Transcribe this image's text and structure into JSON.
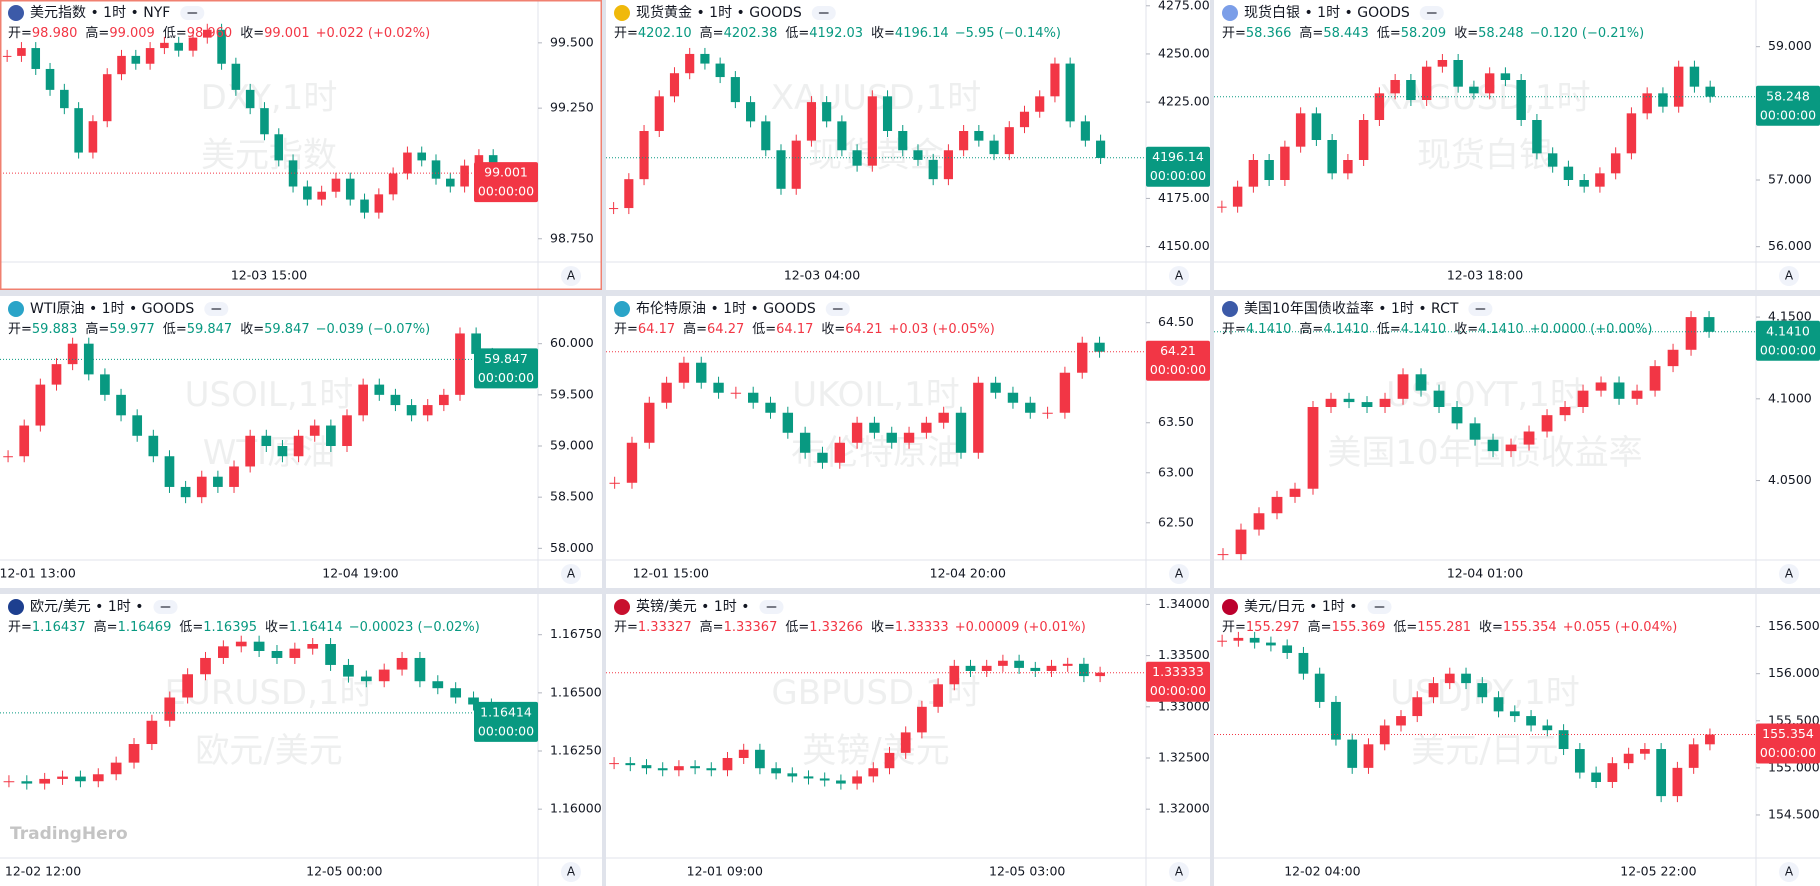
{
  "logo": "TradingHero",
  "panels": [
    {
      "type": "candlestick",
      "title": "美元指数 • 1时 • NYF",
      "color": "#f23645",
      "ohlc": [
        {
          "label": "开=",
          "value": "98.980"
        },
        {
          "label": "高=",
          "value": "99.009"
        },
        {
          "label": "低=",
          "value": "98.960"
        },
        {
          "label": "收=",
          "value": "99.001"
        }
      ],
      "change": "+0.022 (+0.02%)",
      "watermark": [
        "DXY,1时",
        "美元指数"
      ],
      "last": {
        "value": 99.001,
        "label": "99.001"
      },
      "countdown": "00:00:00",
      "time_labels": [
        "12-03 15:00"
      ],
      "auto": "A",
      "ylim": [
        98.661,
        99.664
      ],
      "yticks": [
        {
          "value": 99.5,
          "label": "99.500"
        },
        {
          "value": 99.25,
          "label": "99.250"
        },
        {
          "value": 98.75,
          "label": "98.750"
        }
      ],
      "closes": [
        99.45,
        99.48,
        99.4,
        99.32,
        99.25,
        99.08,
        99.2,
        99.38,
        99.45,
        99.42,
        99.48,
        99.5,
        99.47,
        99.52,
        99.55,
        99.42,
        99.32,
        99.25,
        99.15,
        99.05,
        98.95,
        98.9,
        98.93,
        98.98,
        98.9,
        98.85,
        98.92,
        99.0,
        99.08,
        99.05,
        98.98,
        98.95,
        99.03,
        99.07,
        99.01
      ]
    },
    {
      "type": "candlestick",
      "title": "现货黄金 • 1时 • GOODS",
      "color": "#089981",
      "ohlc": [
        {
          "label": "开=",
          "value": "4202.10"
        },
        {
          "label": "高=",
          "value": "4202.38"
        },
        {
          "label": "低=",
          "value": "4192.03"
        },
        {
          "label": "收=",
          "value": "4196.14"
        }
      ],
      "change": "−5.95 (−0.14%)",
      "watermark": [
        "XAUUSD,1时",
        "现货黄金"
      ],
      "last": {
        "value": 4196.14,
        "label": "4196.14"
      },
      "countdown": "00:00:00",
      "time_labels": [
        "12-03 04:00"
      ],
      "auto": "A",
      "ylim": [
        4142,
        4278
      ],
      "yticks": [
        {
          "value": 4275,
          "label": "4275.00"
        },
        {
          "value": 4250,
          "label": "4250.00"
        },
        {
          "value": 4225,
          "label": "4225.00"
        },
        {
          "value": 4175,
          "label": "4175.00"
        },
        {
          "value": 4150,
          "label": "4150.00"
        }
      ],
      "closes": [
        4170,
        4185,
        4210,
        4228,
        4240,
        4250,
        4245,
        4238,
        4225,
        4215,
        4200,
        4180,
        4205,
        4225,
        4215,
        4200,
        4192,
        4228,
        4210,
        4200,
        4195,
        4185,
        4200,
        4210,
        4205,
        4198,
        4212,
        4220,
        4228,
        4245,
        4215,
        4205,
        4196
      ]
    },
    {
      "type": "candlestick",
      "title": "现货白银 • 1时 • GOODS",
      "color": "#089981",
      "ohlc": [
        {
          "label": "开=",
          "value": "58.366"
        },
        {
          "label": "高=",
          "value": "58.443"
        },
        {
          "label": "低=",
          "value": "58.209"
        },
        {
          "label": "收=",
          "value": "58.248"
        }
      ],
      "change": "−0.120 (−0.21%)",
      "watermark": [
        "XAGUSD,1时",
        "现货白银"
      ],
      "last": {
        "value": 58.248,
        "label": "58.248"
      },
      "countdown": "00:00:00",
      "time_labels": [
        "12-03 18:00"
      ],
      "auto": "A",
      "ylim": [
        55.77,
        59.7
      ],
      "yticks": [
        {
          "value": 59,
          "label": "59.000"
        },
        {
          "value": 57,
          "label": "57.000"
        },
        {
          "value": 56,
          "label": "56.000"
        }
      ],
      "closes": [
        56.6,
        56.9,
        57.3,
        57.0,
        57.5,
        58.0,
        57.6,
        57.1,
        57.3,
        57.9,
        58.3,
        58.5,
        58.2,
        58.7,
        58.8,
        58.4,
        58.3,
        58.6,
        58.5,
        57.9,
        57.4,
        57.2,
        57.0,
        56.9,
        57.1,
        57.4,
        58.0,
        58.3,
        58.1,
        58.7,
        58.4,
        58.25
      ]
    },
    {
      "type": "candlestick",
      "title": "WTI原油 • 1时 • GOODS",
      "color": "#089981",
      "ohlc": [
        {
          "label": "开=",
          "value": "59.883"
        },
        {
          "label": "高=",
          "value": "59.977"
        },
        {
          "label": "低=",
          "value": "59.847"
        },
        {
          "label": "收=",
          "value": "59.847"
        }
      ],
      "change": "−0.039 (−0.07%)",
      "watermark": [
        "USOIL,1时",
        "WTI原油"
      ],
      "last": {
        "value": 59.847,
        "label": "59.847"
      },
      "countdown": "00:00:00",
      "time_labels": [
        "12-01 13:00",
        "12-04 19:00"
      ],
      "auto": "A",
      "ylim": [
        57.886,
        60.466
      ],
      "yticks": [
        {
          "value": 60,
          "label": "60.000"
        },
        {
          "value": 59.5,
          "label": "59.500"
        },
        {
          "value": 59,
          "label": "59.000"
        },
        {
          "value": 58.5,
          "label": "58.500"
        },
        {
          "value": 58,
          "label": "58.000"
        }
      ],
      "closes": [
        58.9,
        59.2,
        59.6,
        59.8,
        60.0,
        59.7,
        59.5,
        59.3,
        59.1,
        58.9,
        58.6,
        58.5,
        58.7,
        58.6,
        58.8,
        59.1,
        59.0,
        58.9,
        59.1,
        59.2,
        59.0,
        59.3,
        59.6,
        59.5,
        59.4,
        59.3,
        59.4,
        59.5,
        60.1,
        59.9,
        59.85
      ]
    },
    {
      "type": "candlestick",
      "title": "布伦特原油 • 1时 • GOODS",
      "color": "#f23645",
      "ohlc": [
        {
          "label": "开=",
          "value": "64.17"
        },
        {
          "label": "高=",
          "value": "64.27"
        },
        {
          "label": "低=",
          "value": "64.17"
        },
        {
          "label": "收=",
          "value": "64.21"
        }
      ],
      "change": "+0.03 (+0.05%)",
      "watermark": [
        "UKOIL,1时",
        "布伦特原油"
      ],
      "last": {
        "value": 64.21,
        "label": "64.21"
      },
      "countdown": "00:00:00",
      "time_labels": [
        "12-01 15:00",
        "12-04 20:00"
      ],
      "auto": "A",
      "ylim": [
        62.128,
        64.767
      ],
      "yticks": [
        {
          "value": 64.5,
          "label": "64.50"
        },
        {
          "value": 63.5,
          "label": "63.50"
        },
        {
          "value": 63,
          "label": "63.00"
        },
        {
          "value": 62.5,
          "label": "62.50"
        }
      ],
      "closes": [
        62.9,
        63.3,
        63.7,
        63.9,
        64.1,
        63.9,
        63.8,
        63.8,
        63.7,
        63.6,
        63.4,
        63.2,
        63.1,
        63.3,
        63.5,
        63.4,
        63.3,
        63.4,
        63.5,
        63.6,
        63.2,
        63.9,
        63.8,
        63.7,
        63.6,
        63.6,
        64.0,
        64.3,
        64.21
      ]
    },
    {
      "type": "candlestick",
      "title": "美国10年国债收益率 • 1时 • RCT",
      "color": "#089981",
      "ohlc": [
        {
          "label": "开=",
          "value": "4.1410"
        },
        {
          "label": "高=",
          "value": "4.1410"
        },
        {
          "label": "低=",
          "value": "4.1410"
        },
        {
          "label": "收=",
          "value": "4.1410"
        }
      ],
      "change": "+0.0000 (+0.00%)",
      "watermark": [
        "US10YT,1时",
        "美国10年国债收益率"
      ],
      "last": {
        "value": 4.141,
        "label": "4.1410"
      },
      "countdown": "00:00:00",
      "time_labels": [
        "12-04 01:00"
      ],
      "auto": "A",
      "ylim": [
        4.0014,
        4.1629
      ],
      "yticks": [
        {
          "value": 4.15,
          "label": "4.1500"
        },
        {
          "value": 4.1,
          "label": "4.1000"
        },
        {
          "value": 4.05,
          "label": "4.0500"
        }
      ],
      "closes": [
        4.005,
        4.02,
        4.03,
        4.04,
        4.045,
        4.095,
        4.1,
        4.098,
        4.095,
        4.1,
        4.115,
        4.105,
        4.095,
        4.085,
        4.075,
        4.068,
        4.072,
        4.08,
        4.09,
        4.095,
        4.105,
        4.11,
        4.1,
        4.105,
        4.12,
        4.13,
        4.15,
        4.141
      ]
    },
    {
      "type": "candlestick",
      "title": "欧元/美元 • 1时 •",
      "color": "#089981",
      "ohlc": [
        {
          "label": "开=",
          "value": "1.16437"
        },
        {
          "label": "高=",
          "value": "1.16469"
        },
        {
          "label": "低=",
          "value": "1.16395"
        },
        {
          "label": "收=",
          "value": "1.16414"
        }
      ],
      "change": "−0.00023 (−0.02%)",
      "watermark": [
        "EURUSD,1时",
        "欧元/美元"
      ],
      "last": {
        "value": 1.16414,
        "label": "1.16414"
      },
      "countdown": "00:00:00",
      "time_labels": [
        "12-02 12:00",
        "12-05 00:00"
      ],
      "auto": "A",
      "ylim": [
        1.1579,
        1.16925
      ],
      "yticks": [
        {
          "value": 1.1675,
          "label": "1.16750"
        },
        {
          "value": 1.165,
          "label": "1.16500"
        },
        {
          "value": 1.1625,
          "label": "1.16250"
        },
        {
          "value": 1.16,
          "label": "1.16000"
        }
      ],
      "closes": [
        1.1612,
        1.1611,
        1.1613,
        1.1614,
        1.1612,
        1.1615,
        1.162,
        1.1628,
        1.1638,
        1.1648,
        1.1658,
        1.1665,
        1.167,
        1.1672,
        1.1668,
        1.1665,
        1.1669,
        1.1671,
        1.1662,
        1.1657,
        1.1655,
        1.166,
        1.1665,
        1.1655,
        1.1652,
        1.1648,
        1.1645,
        1.16414
      ]
    },
    {
      "type": "candlestick",
      "title": "英镑/美元 • 1时 •",
      "color": "#f23645",
      "ohlc": [
        {
          "label": "开=",
          "value": "1.33327"
        },
        {
          "label": "高=",
          "value": "1.33367"
        },
        {
          "label": "低=",
          "value": "1.33266"
        },
        {
          "label": "收=",
          "value": "1.33333"
        }
      ],
      "change": "+0.00009 (+0.01%)",
      "watermark": [
        "GBPUSD,1时",
        "英镑/美元"
      ],
      "last": {
        "value": 1.33333,
        "label": "1.33333"
      },
      "countdown": "00:00:00",
      "time_labels": [
        "12-01 09:00",
        "12-05 03:00"
      ],
      "auto": "A",
      "ylim": [
        1.31523,
        1.34102
      ],
      "yticks": [
        {
          "value": 1.34,
          "label": "1.34000"
        },
        {
          "value": 1.335,
          "label": "1.33500"
        },
        {
          "value": 1.33,
          "label": "1.33000"
        },
        {
          "value": 1.325,
          "label": "1.32500"
        },
        {
          "value": 1.32,
          "label": "1.32000"
        }
      ],
      "closes": [
        1.3245,
        1.3243,
        1.324,
        1.3238,
        1.3242,
        1.324,
        1.3238,
        1.325,
        1.3258,
        1.324,
        1.3235,
        1.3232,
        1.323,
        1.3228,
        1.3225,
        1.3232,
        1.324,
        1.3255,
        1.3275,
        1.33,
        1.3322,
        1.334,
        1.3335,
        1.334,
        1.3345,
        1.3338,
        1.3335,
        1.334,
        1.3342,
        1.333,
        1.33333
      ]
    },
    {
      "type": "candlestick",
      "title": "美元/日元 • 1时 •",
      "color": "#f23645",
      "ohlc": [
        {
          "label": "开=",
          "value": "155.297"
        },
        {
          "label": "高=",
          "value": "155.369"
        },
        {
          "label": "低=",
          "value": "155.281"
        },
        {
          "label": "收=",
          "value": "155.354"
        }
      ],
      "change": "+0.055 (+0.04%)",
      "watermark": [
        "USDJPY,1时",
        "美元/日元"
      ],
      "last": {
        "value": 155.354,
        "label": "155.354"
      },
      "countdown": "00:00:00",
      "time_labels": [
        "12-02 04:00",
        "12-05 22:00"
      ],
      "auto": "A",
      "ylim": [
        154.043,
        156.846
      ],
      "yticks": [
        {
          "value": 156.5,
          "label": "156.500"
        },
        {
          "value": 156,
          "label": "156.000"
        },
        {
          "value": 155.5,
          "label": "155.500"
        },
        {
          "value": 155,
          "label": "155.000"
        },
        {
          "value": 154.5,
          "label": "154.500"
        }
      ],
      "closes": [
        156.35,
        156.38,
        156.33,
        156.3,
        156.22,
        156.0,
        155.7,
        155.3,
        155.0,
        155.25,
        155.45,
        155.55,
        155.75,
        155.9,
        156.0,
        155.9,
        155.75,
        155.6,
        155.55,
        155.45,
        155.4,
        155.2,
        154.95,
        154.85,
        155.05,
        155.15,
        155.2,
        154.7,
        155.0,
        155.25,
        155.354
      ]
    }
  ]
}
